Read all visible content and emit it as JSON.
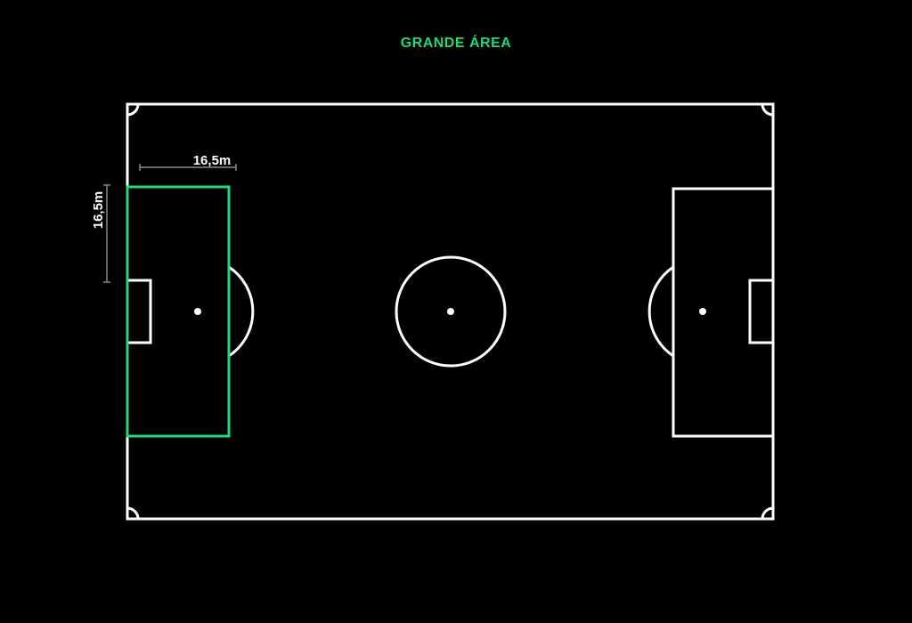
{
  "title": "GRANDE ÁREA",
  "dimensions": {
    "width_label": "16,5m",
    "height_label": "16,5m"
  },
  "colors": {
    "background": "#000000",
    "lines": "#ffffff",
    "highlight": "#1fd97a",
    "dimension_lines": "#8a8a8a"
  },
  "highlighted_element": "left-penalty-area"
}
